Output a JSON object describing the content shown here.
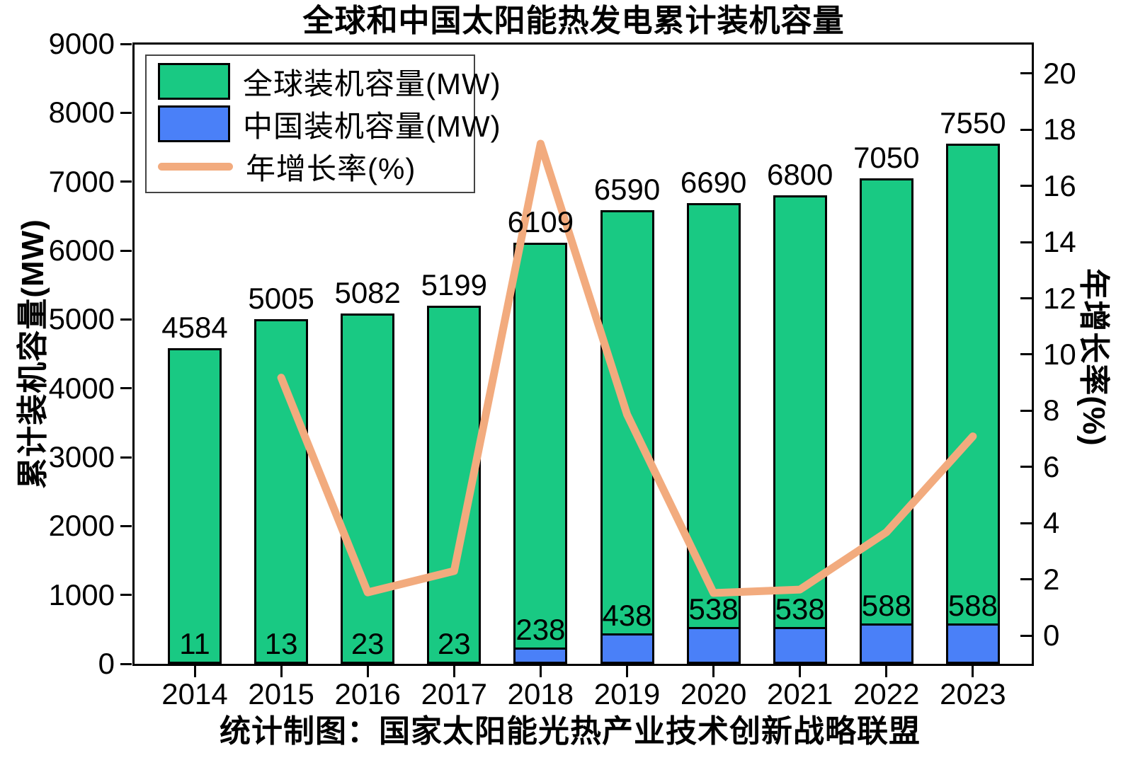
{
  "title": "全球和中国太阳能热发电累计装机容量",
  "caption": "统计制图：国家太阳能光热产业技术创新战略联盟",
  "legend": {
    "items": [
      {
        "label": "全球装机容量(MW)",
        "swatch": "green-box"
      },
      {
        "label": "中国装机容量(MW)",
        "swatch": "blue-box"
      },
      {
        "label": "年增长率(%)",
        "swatch": "orange-line"
      }
    ]
  },
  "colors": {
    "global_bar": "#19c983",
    "china_bar": "#4a80f8",
    "growth_line": "#f2ab7e",
    "axis": "#000000",
    "background": "#ffffff"
  },
  "chart_data": {
    "type": "bar",
    "categories": [
      "2014",
      "2015",
      "2016",
      "2017",
      "2018",
      "2019",
      "2020",
      "2021",
      "2022",
      "2023"
    ],
    "series": [
      {
        "name": "全球装机容量(MW)",
        "kind": "bar",
        "color": "#19c983",
        "values": [
          4584,
          5005,
          5082,
          5199,
          6109,
          6590,
          6690,
          6800,
          7050,
          7550
        ]
      },
      {
        "name": "中国装机容量(MW)",
        "kind": "bar",
        "color": "#4a80f8",
        "values": [
          11,
          13,
          23,
          23,
          238,
          438,
          538,
          538,
          588,
          588
        ]
      },
      {
        "name": "年增长率(%)",
        "kind": "line",
        "color": "#f2ab7e",
        "axis": "right",
        "values": [
          null,
          9.18,
          1.54,
          2.3,
          17.5,
          7.87,
          1.52,
          1.64,
          3.68,
          7.09
        ]
      }
    ],
    "title": "全球和中国太阳能热发电累计装机容量",
    "xlabel": "",
    "ylabel_left": "累计装机容量(MW)",
    "ylabel_right": "年增长率(%)",
    "ylim_left": [
      0,
      9000
    ],
    "left_ticks": [
      0,
      1000,
      2000,
      3000,
      4000,
      5000,
      6000,
      7000,
      8000,
      9000
    ],
    "ylim_right": [
      -1.0,
      21.05
    ],
    "right_ticks": [
      0,
      2,
      4,
      6,
      8,
      10,
      12,
      14,
      16,
      18,
      20
    ],
    "grid": false,
    "legend_position": "top-left",
    "bar_value_labels": true
  }
}
